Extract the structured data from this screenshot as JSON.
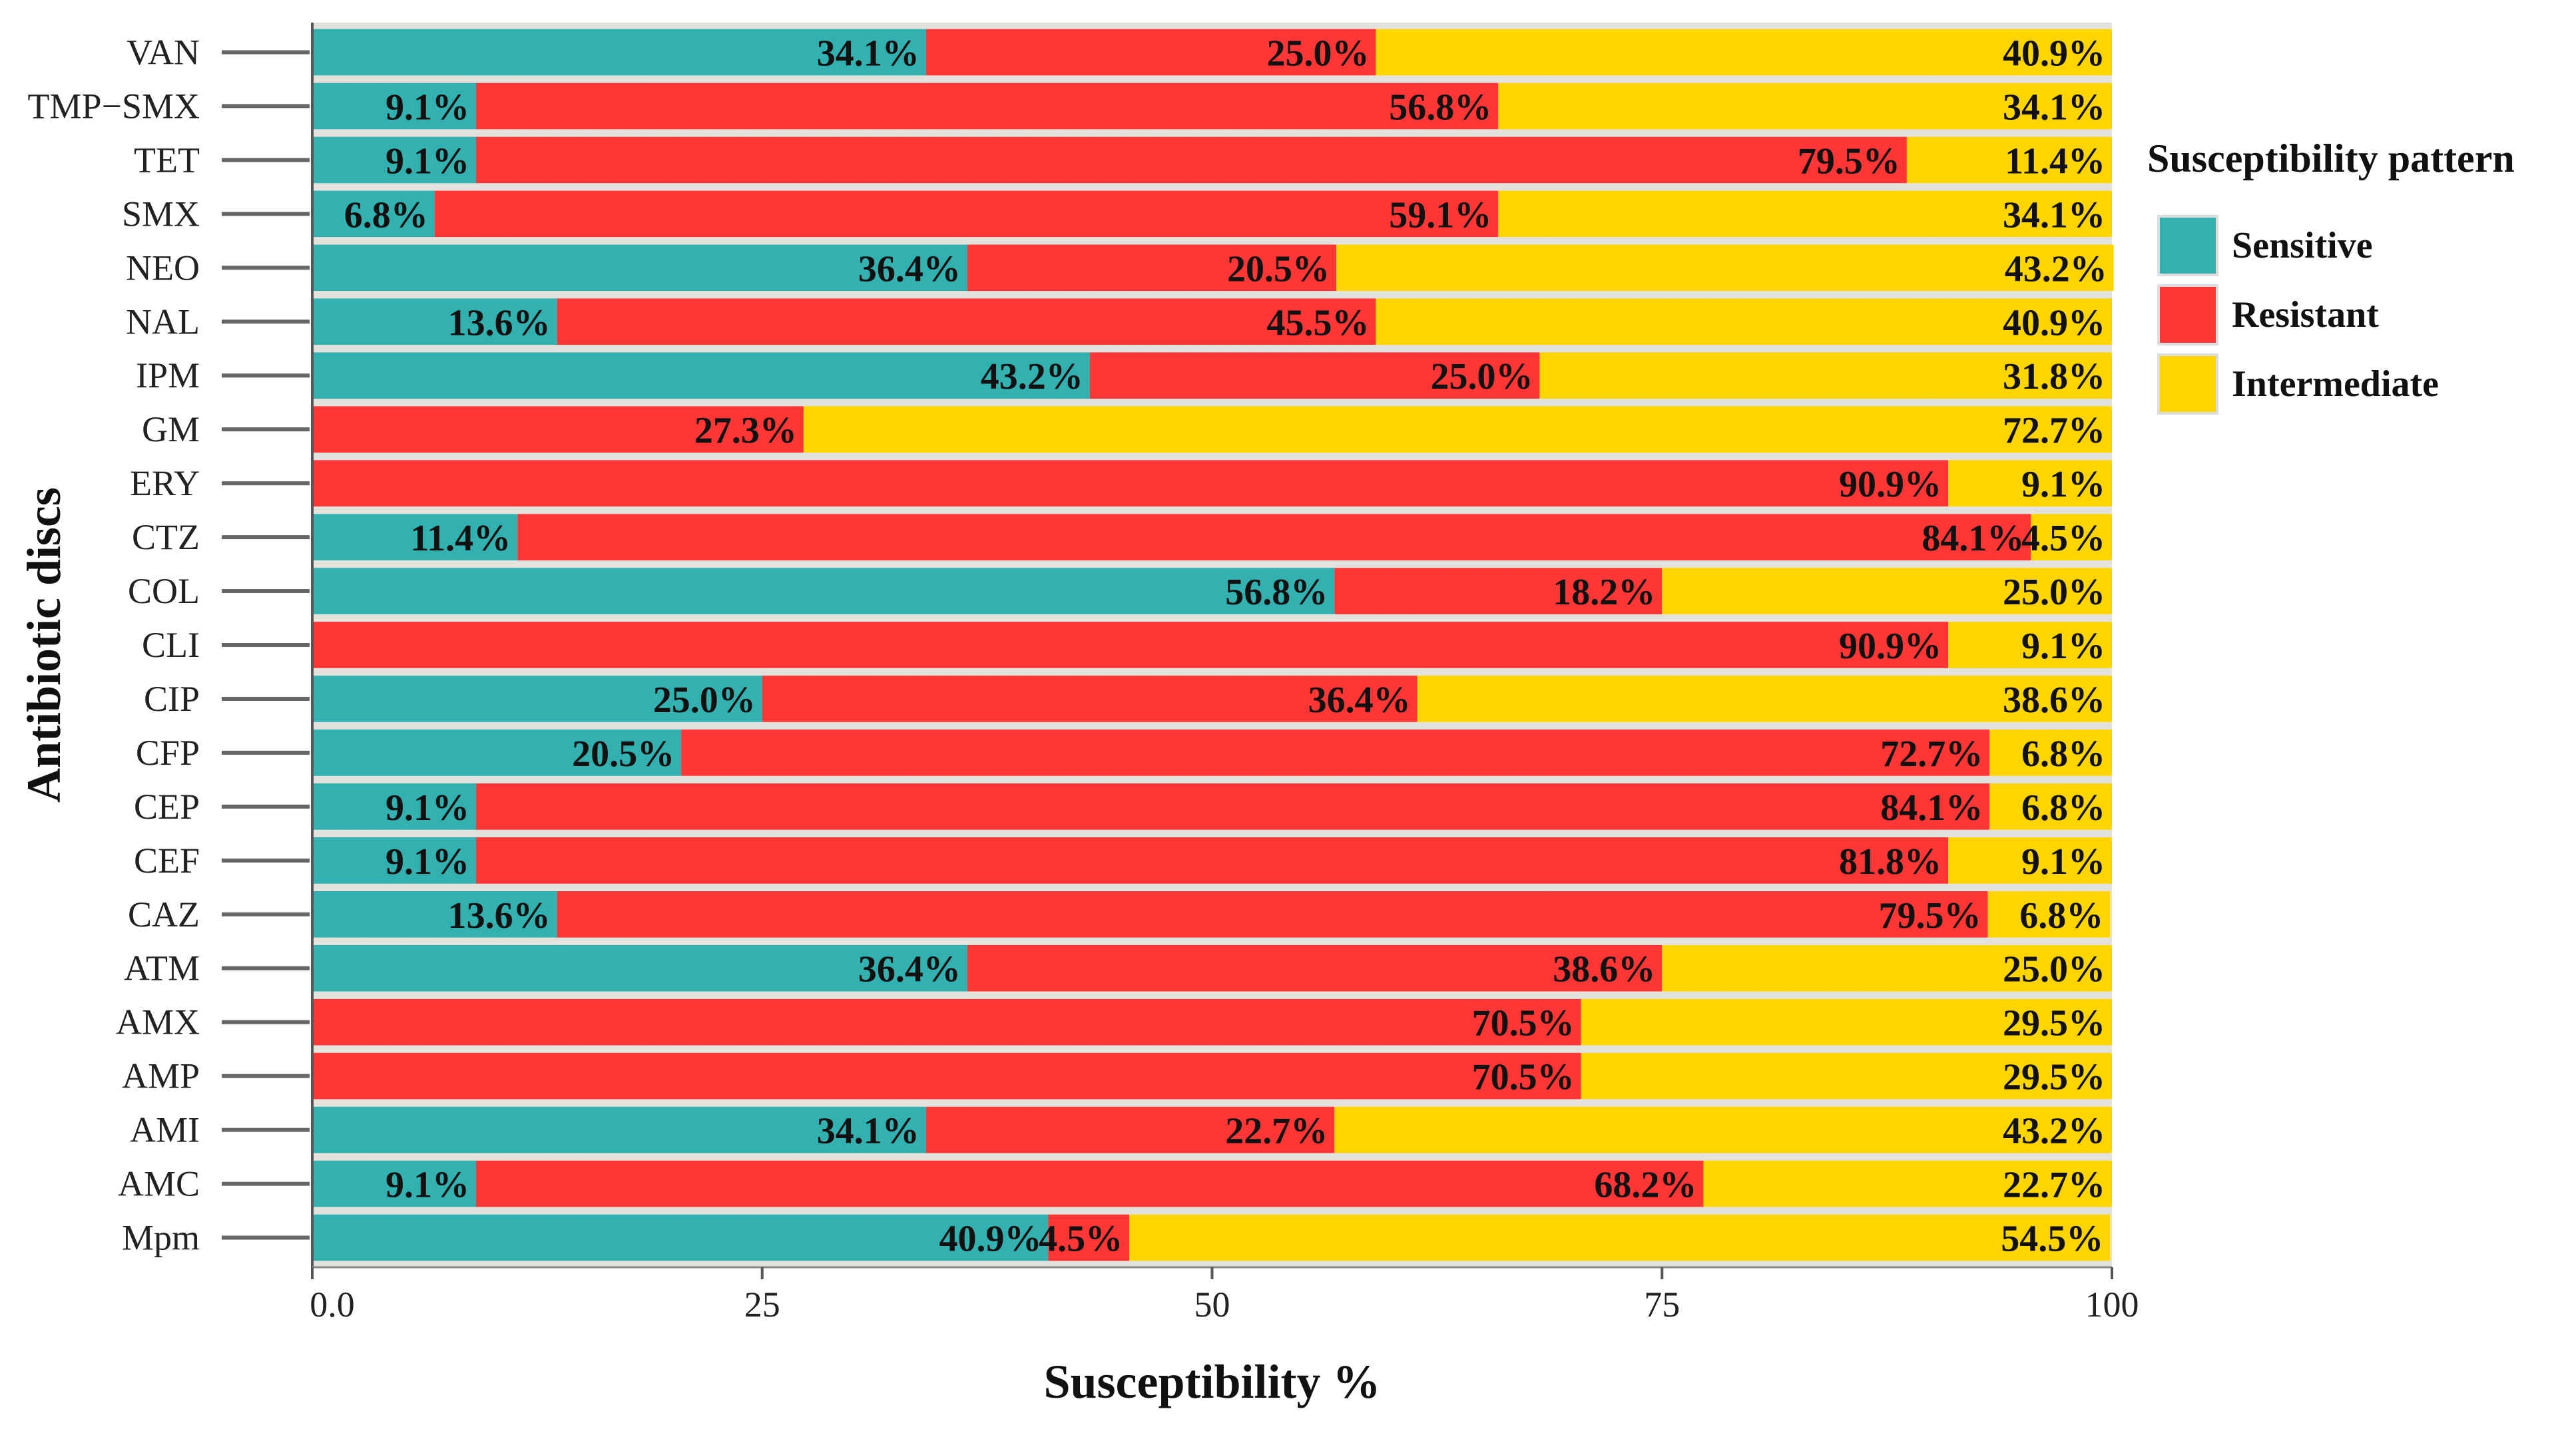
{
  "chart_data": {
    "type": "bar",
    "orientation": "horizontal",
    "stacked": true,
    "xlabel": "Susceptibility %",
    "ylabel": "Antibiotic discs",
    "xlim": [
      0,
      100
    ],
    "xticks": [
      "0.0",
      "25",
      "50",
      "75",
      "100"
    ],
    "xtick_values": [
      0,
      25,
      50,
      75,
      100
    ],
    "legend": {
      "title": "Susceptibility pattern",
      "placement": "right"
    },
    "categories": [
      "VAN",
      "TMP−SMX",
      "TET",
      "SMX",
      "NEO",
      "NAL",
      "IPM",
      "GM",
      "ERY",
      "CTZ",
      "COL",
      "CLI",
      "CIP",
      "CFP",
      "CEP",
      "CEF",
      "CAZ",
      "ATM",
      "AMX",
      "AMP",
      "AMI",
      "AMC",
      "Mpm"
    ],
    "series": [
      {
        "name": "Sensitive",
        "color": "#33b0b0",
        "values": [
          34.1,
          9.1,
          9.1,
          6.8,
          36.4,
          13.6,
          43.2,
          0,
          0,
          11.4,
          56.8,
          0,
          25.0,
          20.5,
          9.1,
          9.1,
          13.6,
          36.4,
          0,
          0,
          34.1,
          9.1,
          40.9
        ]
      },
      {
        "name": "Resistant",
        "color": "#ff3636",
        "values": [
          25.0,
          56.8,
          79.5,
          59.1,
          20.5,
          45.5,
          25.0,
          27.3,
          90.9,
          84.1,
          18.2,
          90.9,
          36.4,
          72.7,
          84.1,
          81.8,
          79.5,
          38.6,
          70.5,
          70.5,
          22.7,
          68.2,
          4.5
        ]
      },
      {
        "name": "Intermediate",
        "color": "#ffd500",
        "values": [
          40.9,
          34.1,
          11.4,
          34.1,
          43.2,
          40.9,
          31.8,
          72.7,
          9.1,
          4.5,
          25.0,
          9.1,
          38.6,
          6.8,
          6.8,
          9.1,
          6.8,
          25.0,
          29.5,
          29.5,
          43.2,
          22.7,
          54.5
        ]
      }
    ]
  }
}
